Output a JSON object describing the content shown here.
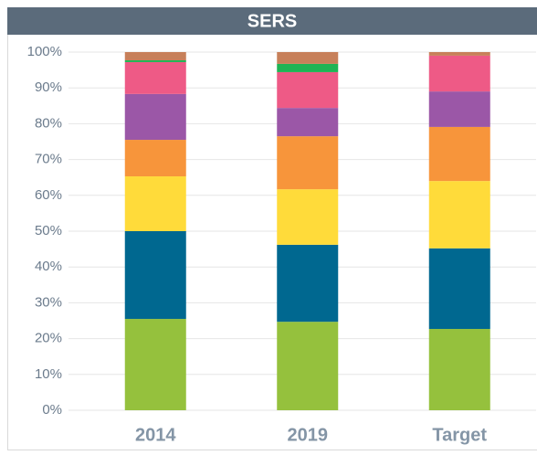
{
  "chart_data": {
    "type": "stacked_bar",
    "title": "SERS",
    "categories": [
      "2014",
      "2019",
      "Target"
    ],
    "series": [
      {
        "color": "#95c13d",
        "values": [
          25.5,
          24.7,
          22.7
        ]
      },
      {
        "color": "#006890",
        "values": [
          24.5,
          21.5,
          22.5
        ]
      },
      {
        "color": "#ffdb3a",
        "values": [
          15.3,
          15.5,
          18.8
        ]
      },
      {
        "color": "#f7953b",
        "values": [
          10.2,
          14.8,
          15.1
        ]
      },
      {
        "color": "#9b57a7",
        "values": [
          12.8,
          7.9,
          9.9
        ]
      },
      {
        "color": "#ee5a86",
        "values": [
          8.9,
          10.0,
          10.0
        ]
      },
      {
        "color": "#1fb454",
        "values": [
          0.5,
          2.3,
          0
        ]
      },
      {
        "color": "#c7805a",
        "values": [
          2.3,
          3.3,
          1.0
        ]
      }
    ],
    "ylim": [
      0,
      100
    ],
    "yticks": [
      {
        "value": 0,
        "label": "0%"
      },
      {
        "value": 10,
        "label": "10%"
      },
      {
        "value": 20,
        "label": "20%"
      },
      {
        "value": 30,
        "label": "30%"
      },
      {
        "value": 40,
        "label": "40%"
      },
      {
        "value": 50,
        "label": "50%"
      },
      {
        "value": 60,
        "label": "60%"
      },
      {
        "value": 70,
        "label": "70%"
      },
      {
        "value": 80,
        "label": "80%"
      },
      {
        "value": 90,
        "label": "90%"
      },
      {
        "value": 100,
        "label": "100%"
      }
    ],
    "grid": true
  }
}
